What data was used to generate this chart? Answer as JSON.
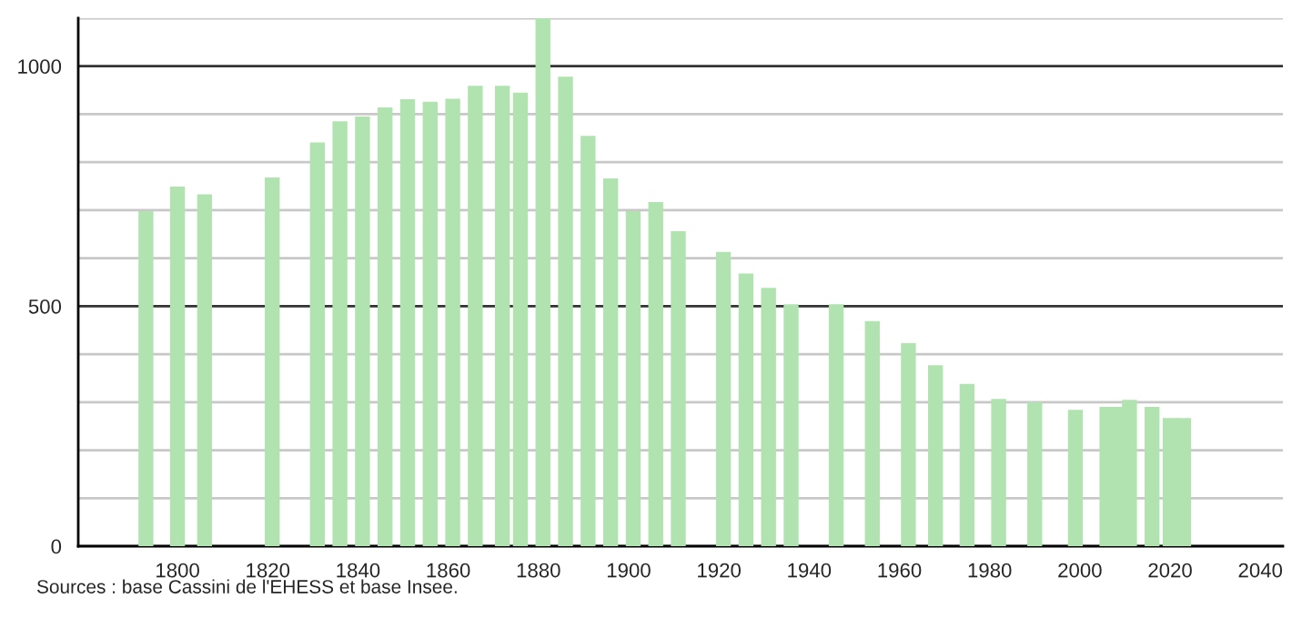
{
  "chart_data": {
    "type": "bar",
    "x": [
      1793,
      1800,
      1806,
      1821,
      1831,
      1836,
      1841,
      1846,
      1851,
      1856,
      1861,
      1866,
      1872,
      1876,
      1881,
      1886,
      1891,
      1896,
      1901,
      1906,
      1911,
      1921,
      1926,
      1931,
      1936,
      1946,
      1954,
      1962,
      1968,
      1975,
      1982,
      1990,
      1999,
      2006,
      2008,
      2011,
      2016,
      2020,
      2023
    ],
    "values": [
      698,
      749,
      733,
      768,
      841,
      885,
      895,
      914,
      931,
      926,
      932,
      959,
      959,
      945,
      1100,
      978,
      855,
      766,
      698,
      717,
      656,
      613,
      568,
      538,
      504,
      504,
      469,
      423,
      377,
      338,
      307,
      300,
      284,
      290,
      290,
      305,
      290,
      267,
      267
    ],
    "color": "#b0e3b0",
    "xlim": [
      1778,
      2045
    ],
    "xticks": [
      1800,
      1820,
      1840,
      1860,
      1880,
      1900,
      1920,
      1940,
      1960,
      1980,
      2000,
      2020,
      2040
    ],
    "ylim": [
      0,
      1100
    ],
    "yticks": [
      0,
      {
        "value": 100,
        "label": null
      },
      {
        "value": 200,
        "label": null
      },
      {
        "value": 300,
        "label": null
      },
      {
        "value": 400,
        "label": null
      },
      500,
      {
        "value": 600,
        "label": null
      },
      {
        "value": 700,
        "label": null
      },
      {
        "value": 800,
        "label": null
      },
      {
        "value": 900,
        "label": null
      },
      1000,
      {
        "value": 1100,
        "label": null
      }
    ],
    "grid": "y",
    "annotations": [
      "Sources : base Cassini de l'EHESS et base Insee."
    ]
  }
}
